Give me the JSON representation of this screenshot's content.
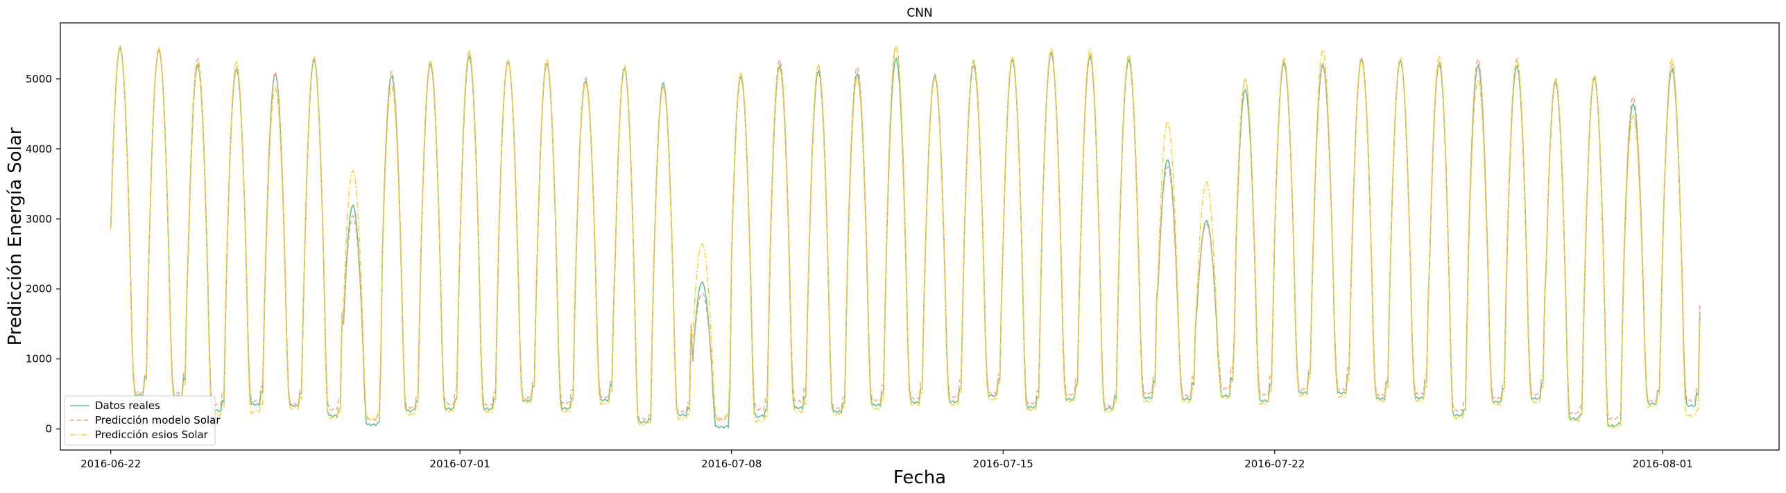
{
  "chart_data": {
    "type": "line",
    "title": "CNN",
    "xlabel": "Fecha",
    "ylabel": "Predicción Energía Solar",
    "ylim": [
      -300,
      5800
    ],
    "yticks": [
      0,
      1000,
      2000,
      3000,
      4000,
      5000
    ],
    "xlim_days": [
      -1.3,
      43.0
    ],
    "x_start": "2016-06-22",
    "xticks": [
      {
        "day": 0,
        "label": "2016-06-22"
      },
      {
        "day": 9,
        "label": "2016-07-01"
      },
      {
        "day": 16,
        "label": "2016-07-08"
      },
      {
        "day": 23,
        "label": "2016-07-15"
      },
      {
        "day": 30,
        "label": "2016-07-22"
      },
      {
        "day": 40,
        "label": "2016-08-01"
      }
    ],
    "sampling": "hourly",
    "daily_night_base_reales": [
      720,
      700,
      380,
      500,
      480,
      260,
      70,
      380,
      410,
      410,
      600,
      430,
      600,
      120,
      280,
      20,
      250,
      430,
      350,
      500,
      560,
      560,
      700,
      450,
      630,
      420,
      650,
      630,
      700,
      600,
      760,
      760,
      640,
      660,
      260,
      560,
      640,
      200,
      50,
      520,
      480
    ],
    "daily_peak_reales": [
      5450,
      5420,
      5200,
      5150,
      5080,
      5280,
      3200,
      5050,
      5220,
      5330,
      5260,
      5230,
      4980,
      5160,
      4950,
      2100,
      5040,
      5200,
      5120,
      5080,
      5300,
      5050,
      5200,
      5280,
      5380,
      5330,
      5280,
      3850,
      2980,
      4850,
      5230,
      5200,
      5290,
      5270,
      5220,
      5200,
      5190,
      4960,
      5020,
      4650,
      5150
    ],
    "series": [
      {
        "name": "Datos reales",
        "color": "#5fbf9f",
        "style": "solid",
        "peak_offsets": [
          0,
          0,
          0,
          0,
          0,
          0,
          0,
          0,
          0,
          0,
          0,
          0,
          0,
          0,
          0,
          0,
          0,
          0,
          0,
          0,
          0,
          0,
          0,
          0,
          0,
          0,
          0,
          0,
          0,
          0,
          0,
          0,
          0,
          0,
          0,
          0,
          0,
          0,
          0,
          0,
          0
        ],
        "base_offsets": [
          0,
          0,
          0,
          0,
          0,
          0,
          0,
          0,
          0,
          0,
          0,
          0,
          0,
          0,
          0,
          0,
          0,
          0,
          0,
          0,
          0,
          0,
          0,
          0,
          0,
          0,
          0,
          0,
          0,
          0,
          0,
          0,
          0,
          0,
          0,
          0,
          0,
          0,
          0,
          0,
          0
        ]
      },
      {
        "name": "Predicción modelo Solar",
        "color": "#f4a582",
        "style": "dashed",
        "peak_offsets": [
          20,
          10,
          90,
          20,
          20,
          20,
          -150,
          60,
          40,
          60,
          20,
          0,
          40,
          30,
          -50,
          -150,
          20,
          80,
          80,
          100,
          170,
          20,
          70,
          30,
          40,
          20,
          60,
          -100,
          -50,
          150,
          40,
          30,
          20,
          30,
          20,
          90,
          100,
          50,
          40,
          100,
          60
        ],
        "base_offsets": [
          60,
          50,
          120,
          80,
          40,
          150,
          100,
          60,
          120,
          100,
          60,
          120,
          80,
          80,
          60,
          150,
          150,
          150,
          80,
          100,
          80,
          120,
          60,
          80,
          100,
          60,
          120,
          80,
          150,
          120,
          80,
          90,
          60,
          80,
          120,
          90,
          100,
          120,
          150,
          60,
          120
        ]
      },
      {
        "name": "Predicción esios Solar",
        "color": "#ffd11a",
        "style": "dashdot",
        "peak_offsets": [
          30,
          40,
          30,
          100,
          -200,
          40,
          500,
          -150,
          50,
          70,
          -10,
          60,
          -20,
          30,
          -50,
          550,
          50,
          -30,
          80,
          -60,
          180,
          -40,
          40,
          50,
          60,
          100,
          50,
          550,
          550,
          150,
          70,
          220,
          -20,
          30,
          100,
          -200,
          80,
          40,
          20,
          -170,
          140
        ],
        "base_offsets": [
          -40,
          -80,
          -100,
          -160,
          -60,
          -40,
          120,
          -80,
          -50,
          -60,
          -40,
          -60,
          -80,
          -40,
          -80,
          180,
          -100,
          -80,
          -60,
          -80,
          -50,
          -60,
          -80,
          -60,
          -40,
          -60,
          -80,
          -60,
          -40,
          -70,
          -60,
          -80,
          -50,
          -60,
          -40,
          -60,
          -80,
          -40,
          -30,
          -60,
          -220
        ]
      }
    ],
    "legend_position": "lower-left"
  }
}
